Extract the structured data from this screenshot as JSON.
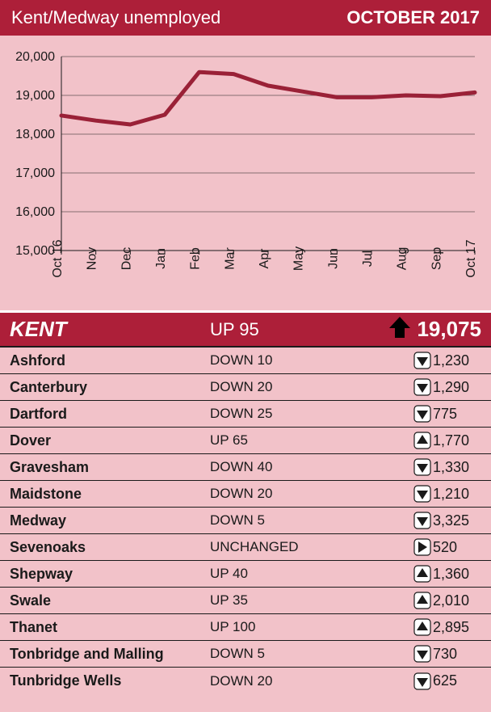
{
  "header": {
    "title": "Kent/Medway unemployed",
    "date": "OCTOBER 2017"
  },
  "chart": {
    "type": "line",
    "background_color": "#f2c2c9",
    "line_color": "#9a2137",
    "line_width": 5,
    "grid_color": "#1a1a1a",
    "tick_font_size": 16,
    "tick_color": "#1a1a1a",
    "ylim": [
      15000,
      20000
    ],
    "ytick_step": 1000,
    "y_labels": [
      "15,000",
      "16,000",
      "17,000",
      "18,000",
      "19,000",
      "20,000"
    ],
    "x_labels": [
      "Oct 16",
      "Nov",
      "Dec",
      "Jan",
      "Feb",
      "Mar",
      "Apr",
      "May",
      "Jun",
      "Jul",
      "Aug",
      "Sep",
      "Oct 17"
    ],
    "values": [
      18480,
      18350,
      18250,
      18500,
      19600,
      19550,
      19250,
      19100,
      18950,
      18950,
      19000,
      18980,
      19075
    ]
  },
  "summary": {
    "name": "KENT",
    "delta_text": "UP 95",
    "direction": "up",
    "value": "19,075",
    "bg_color": "#ad1f39",
    "text_color": "#ffffff",
    "arrow_fill": "#000000"
  },
  "row_style": {
    "bg_color": "#f2c2c9",
    "border_color": "#1a1a1a",
    "arrow_square_fill": "#ffffff",
    "arrow_square_border": "#1a1a1a",
    "arrow_tri_fill": "#1a1a1a"
  },
  "rows": [
    {
      "name": "Ashford",
      "delta_text": "DOWN 10",
      "direction": "down",
      "value": "1,230"
    },
    {
      "name": "Canterbury",
      "delta_text": "DOWN 20",
      "direction": "down",
      "value": "1,290"
    },
    {
      "name": "Dartford",
      "delta_text": "DOWN 25",
      "direction": "down",
      "value": "775"
    },
    {
      "name": "Dover",
      "delta_text": "UP 65",
      "direction": "up",
      "value": "1,770"
    },
    {
      "name": "Gravesham",
      "delta_text": "DOWN 40",
      "direction": "down",
      "value": "1,330"
    },
    {
      "name": "Maidstone",
      "delta_text": "DOWN 20",
      "direction": "down",
      "value": "1,210"
    },
    {
      "name": "Medway",
      "delta_text": "DOWN 5",
      "direction": "down",
      "value": "3,325"
    },
    {
      "name": "Sevenoaks",
      "delta_text": "UNCHANGED",
      "direction": "unchanged",
      "value": "520"
    },
    {
      "name": "Shepway",
      "delta_text": "UP 40",
      "direction": "up",
      "value": "1,360"
    },
    {
      "name": "Swale",
      "delta_text": "UP 35",
      "direction": "up",
      "value": "2,010"
    },
    {
      "name": "Thanet",
      "delta_text": "UP 100",
      "direction": "up",
      "value": "2,895"
    },
    {
      "name": "Tonbridge and Malling",
      "delta_text": "DOWN 5",
      "direction": "down",
      "value": "730"
    },
    {
      "name": "Tunbridge Wells",
      "delta_text": "DOWN 20",
      "direction": "down",
      "value": "625"
    }
  ]
}
